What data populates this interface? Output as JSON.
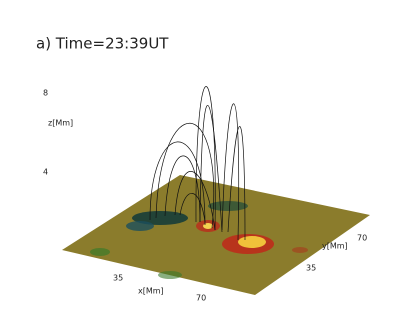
{
  "figure": {
    "title": "a) Time=23:39UT",
    "z_axis": {
      "label": "z[Mm]",
      "ticks": [
        "8",
        "4"
      ]
    },
    "x_axis": {
      "label": "x[Mm]",
      "ticks": [
        "35",
        "70"
      ]
    },
    "y_axis": {
      "label": "y[Mm]",
      "ticks": [
        "35",
        "70"
      ]
    }
  }
}
